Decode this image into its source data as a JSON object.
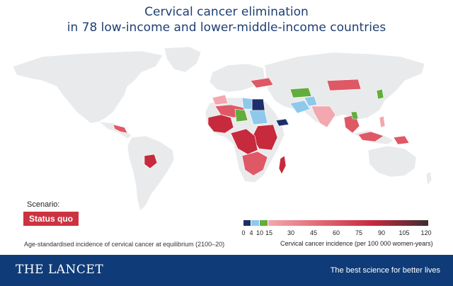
{
  "title": {
    "line1": "Cervical cancer elimination",
    "line2": "in 78 low-income and lower-middle-income countries"
  },
  "scenario": {
    "label": "Scenario:",
    "value": "Status quo"
  },
  "legend": {
    "ticks": [
      "0",
      "4",
      "10",
      "15",
      "30",
      "45",
      "60",
      "75",
      "90",
      "105",
      "120"
    ],
    "caption": "Cervical cancer incidence (per 100 000 women-years)",
    "colors": {
      "navy": "#1c2f6b",
      "lightblue": "#8ec9ec",
      "green": "#62ad3c",
      "red_low": "#f2a8ae",
      "red_mid": "#df5866",
      "red_high": "#c62a3c",
      "dark": "#3a2e30"
    }
  },
  "map_colors": {
    "land": "#e9eaec",
    "border": "#ffffff"
  },
  "subcaption": "Age-standardised incidence of cervical cancer at equilibrium (2100–20)",
  "footer": {
    "brand": "THE LANCET",
    "tagline": "The best science for better lives"
  }
}
